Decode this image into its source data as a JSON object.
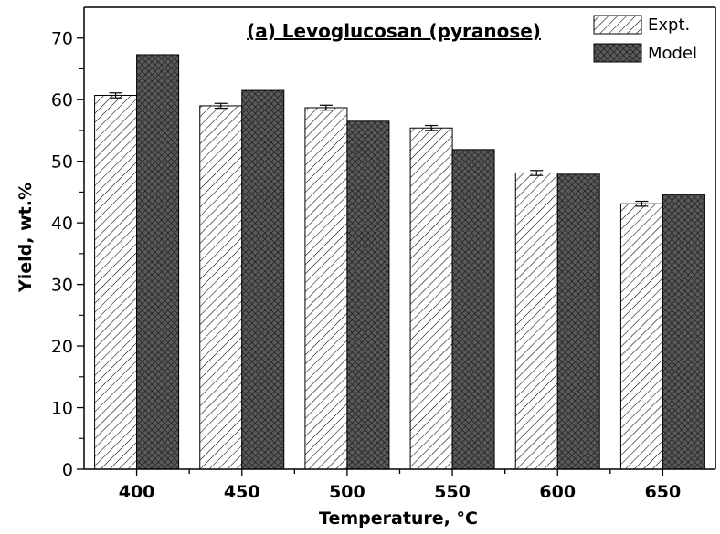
{
  "chart_data": {
    "type": "bar",
    "title": "(a) Levoglucosan (pyranose)",
    "xlabel": "Temperature, °C",
    "ylabel": "Yield, wt.%",
    "categories": [
      "400",
      "450",
      "500",
      "550",
      "600",
      "650"
    ],
    "ylim": [
      0,
      75
    ],
    "yticks": [
      0,
      10,
      20,
      30,
      40,
      50,
      60,
      70
    ],
    "grid": false,
    "legend_position": "top-right",
    "series": [
      {
        "name": "Expt.",
        "values": [
          60.7,
          59.0,
          58.7,
          55.4,
          48.1,
          43.1
        ],
        "error": [
          0.4,
          0.4,
          0.4,
          0.4,
          0.4,
          0.4
        ],
        "pattern": "diagonal-hatch",
        "fill_color": "#ffffff"
      },
      {
        "name": "Model",
        "values": [
          67.3,
          61.5,
          56.5,
          51.9,
          47.9,
          44.6
        ],
        "pattern": "dark-crosshatch",
        "fill_color": "#3a3a3a"
      }
    ]
  }
}
